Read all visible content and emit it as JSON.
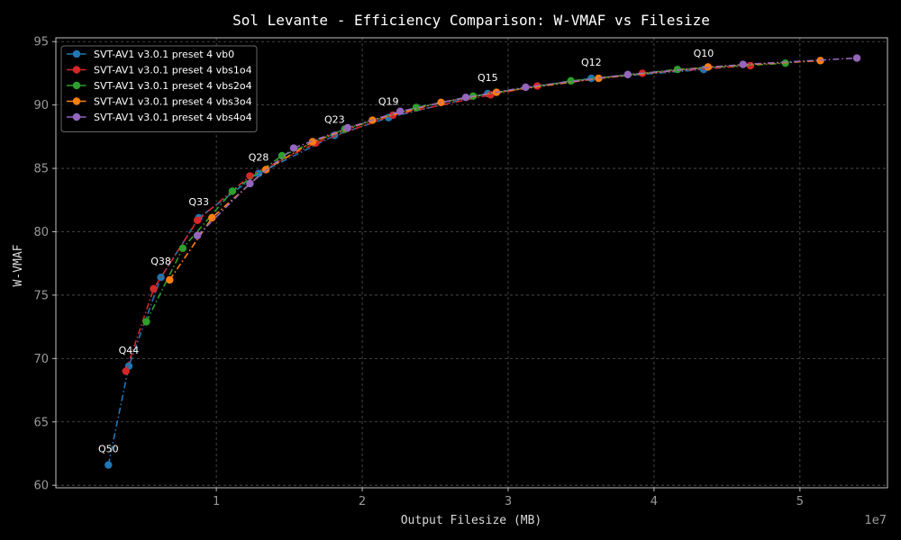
{
  "chart_data": {
    "type": "line",
    "title": "Sol Levante - Efficiency Comparison: W-VMAF vs Filesize",
    "xlabel": "Output Filesize (MB)",
    "ylabel": "W-VMAF",
    "x_multiplier_label": "1e7",
    "xlim": [
      -1000000,
      56000000
    ],
    "ylim": [
      59.8,
      95.3
    ],
    "xticks": [
      1,
      2,
      3,
      4,
      5
    ],
    "yticks": [
      60,
      65,
      70,
      75,
      80,
      85,
      90,
      95
    ],
    "grid": true,
    "legend_position": "top-left",
    "series": [
      {
        "name": "SVT-AV1 v3.0.1 preset 4 vb0",
        "color": "#1f77b4",
        "x": [
          2600000,
          4000000,
          6200000,
          8800000,
          12900000,
          18100000,
          21800000,
          28600000,
          35700000,
          43400000
        ],
        "y": [
          61.6,
          69.4,
          76.4,
          81.1,
          84.6,
          87.6,
          89.0,
          90.9,
          92.1,
          92.8
        ]
      },
      {
        "name": "SVT-AV1 v3.0.1 preset 4 vbs1o4",
        "color": "#d62728",
        "x": [
          3800000,
          5700000,
          8700000,
          12300000,
          16800000,
          22100000,
          28800000,
          32000000,
          39200000,
          46600000
        ],
        "y": [
          69.0,
          75.5,
          80.9,
          84.4,
          87.0,
          89.2,
          90.8,
          91.5,
          92.5,
          93.1
        ]
      },
      {
        "name": "SVT-AV1 v3.0.1 preset 4 vbs2o4",
        "color": "#2ca02c",
        "x": [
          5200000,
          7700000,
          11100000,
          14500000,
          18800000,
          23700000,
          27600000,
          34300000,
          41600000,
          49000000
        ],
        "y": [
          72.9,
          78.7,
          83.2,
          86.0,
          88.1,
          89.8,
          90.7,
          91.9,
          92.8,
          93.3
        ]
      },
      {
        "name": "SVT-AV1 v3.0.1 preset 4 vbs3o4",
        "color": "#ff7f0e",
        "x": [
          6800000,
          9700000,
          13400000,
          16600000,
          20700000,
          25400000,
          29200000,
          36200000,
          43700000,
          51400000
        ],
        "y": [
          76.2,
          81.1,
          84.9,
          87.1,
          88.8,
          90.2,
          91.0,
          92.1,
          93.0,
          93.5
        ]
      },
      {
        "name": "SVT-AV1 v3.0.1 preset 4 vbs4o4",
        "color": "#9467bd",
        "x": [
          8700000,
          12300000,
          15300000,
          19000000,
          22600000,
          27100000,
          31200000,
          38200000,
          46100000,
          53900000
        ],
        "y": [
          79.7,
          83.8,
          86.6,
          88.2,
          89.5,
          90.6,
          91.4,
          92.4,
          93.2,
          93.7
        ]
      }
    ],
    "annotations": [
      {
        "text": "Q50",
        "x": 2600000,
        "y": 61.6
      },
      {
        "text": "Q44",
        "x": 4000000,
        "y": 69.4
      },
      {
        "text": "Q38",
        "x": 6200000,
        "y": 76.4
      },
      {
        "text": "Q33",
        "x": 8800000,
        "y": 81.1
      },
      {
        "text": "Q28",
        "x": 12900000,
        "y": 84.6
      },
      {
        "text": "Q23",
        "x": 18100000,
        "y": 87.6
      },
      {
        "text": "Q19",
        "x": 21800000,
        "y": 89.0
      },
      {
        "text": "Q15",
        "x": 28600000,
        "y": 90.9
      },
      {
        "text": "Q12",
        "x": 35700000,
        "y": 92.1
      },
      {
        "text": "Q10",
        "x": 43400000,
        "y": 92.8
      }
    ]
  }
}
